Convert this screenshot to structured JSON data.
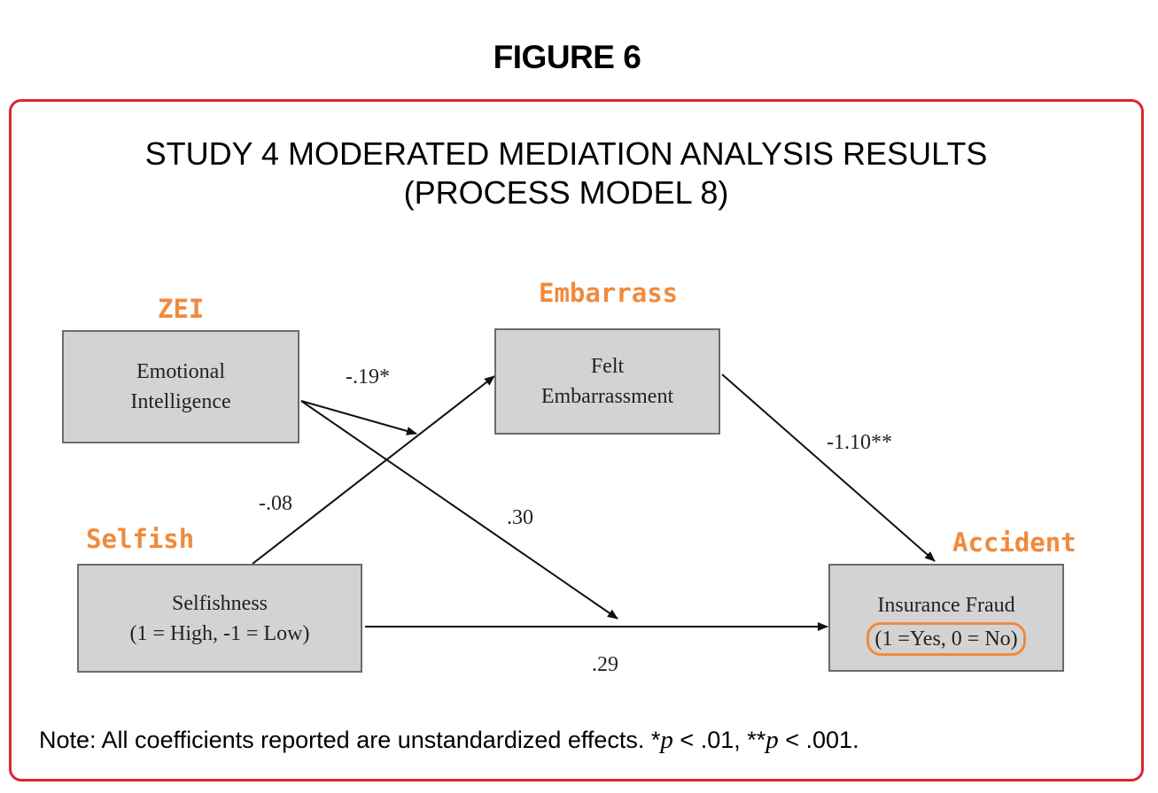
{
  "figure": {
    "label": "FIGURE 6",
    "title_line1": "STUDY 4 MODERATED MEDIATION ANALYSIS RESULTS",
    "title_line2": "(PROCESS MODEL 8)"
  },
  "nodes": {
    "emotional_intelligence": {
      "line1": "Emotional",
      "line2": "Intelligence",
      "tag": "ZEI"
    },
    "felt_embarrassment": {
      "line1": "Felt",
      "line2": "Embarrassment",
      "tag": "Embarrass"
    },
    "selfishness": {
      "line1": "Selfishness",
      "line2": "(1 = High, -1 = Low)",
      "tag": "Selfish"
    },
    "insurance_fraud": {
      "line1": "Insurance Fraud",
      "line2": "(1 =Yes, 0 = No)",
      "tag": "Accident"
    }
  },
  "paths": [
    {
      "from": "emotional_intelligence",
      "to": "selfishness-to-embarrassment path",
      "coef": "-.19*"
    },
    {
      "from": "selfishness",
      "to": "felt_embarrassment",
      "coef": "-.08"
    },
    {
      "from": "emotional_intelligence",
      "to": "selfishness-to-fraud path",
      "coef": ".30"
    },
    {
      "from": "felt_embarrassment",
      "to": "insurance_fraud",
      "coef": "-1.10**"
    },
    {
      "from": "selfishness",
      "to": "insurance_fraud",
      "coef": ".29"
    }
  ],
  "colors": {
    "frame": "#d7282f",
    "tag": "#f08a3c",
    "box_fill": "#d3d3d3",
    "box_border": "#6b6b6b"
  },
  "note": {
    "prefix": "Note: All coefficients reported are unstandardized effects. *",
    "p1": "p",
    "mid1": " < .01, **",
    "p2": "p",
    "mid2": " < .001."
  }
}
